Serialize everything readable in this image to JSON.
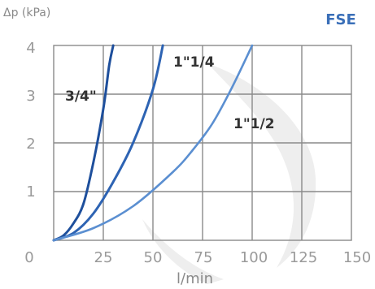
{
  "chart_data": {
    "type": "line",
    "title": "FSE",
    "ylabel": "Δp (kPa)",
    "xlabel": "l/min",
    "xlim": [
      0,
      150
    ],
    "ylim": [
      0,
      4
    ],
    "x_ticks": [
      "0",
      "25",
      "50",
      "75",
      "100",
      "125",
      "150"
    ],
    "y_ticks": [
      "0",
      "1",
      "2",
      "3",
      "4"
    ],
    "grid": true,
    "series": [
      {
        "name": "3/4\"",
        "color": "#1e4f9c",
        "x": [
          0,
          5,
          10,
          15,
          20,
          25,
          28,
          30
        ],
        "y": [
          0,
          0.1,
          0.35,
          0.75,
          1.6,
          2.7,
          3.6,
          4.0
        ]
      },
      {
        "name": "1\"1/4",
        "color": "#2d63b3",
        "x": [
          0,
          10,
          20,
          30,
          40,
          50,
          55
        ],
        "y": [
          0,
          0.15,
          0.55,
          1.2,
          2.0,
          3.1,
          4.0
        ]
      },
      {
        "name": "1\"1/2",
        "color": "#5b8fd1",
        "x": [
          0,
          20,
          40,
          60,
          70,
          80,
          90,
          100
        ],
        "y": [
          0,
          0.25,
          0.7,
          1.4,
          1.85,
          2.4,
          3.15,
          4.0
        ]
      }
    ]
  }
}
